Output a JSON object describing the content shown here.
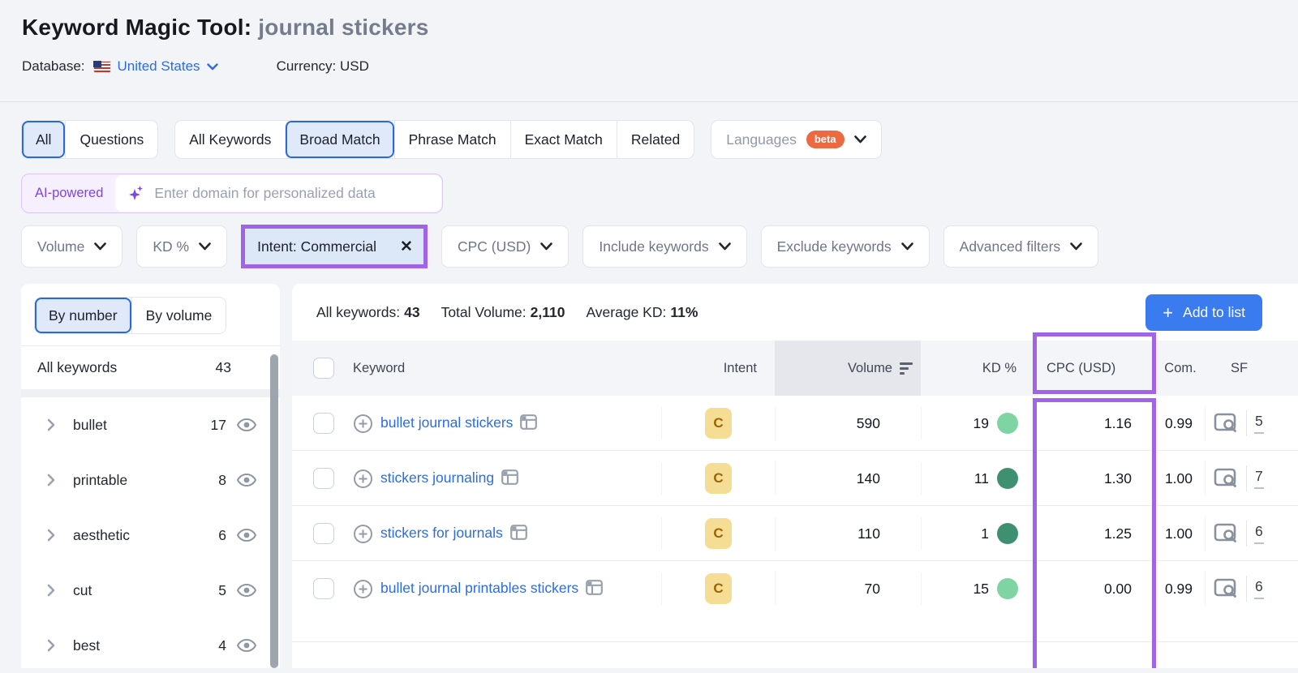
{
  "app": {
    "title": "Keyword Magic Tool:",
    "query": "journal stickers"
  },
  "meta": {
    "database_label": "Database:",
    "database_value": "United States",
    "currency_label": "Currency:",
    "currency_value": "USD"
  },
  "match_tabs": {
    "scope": [
      {
        "label": "All",
        "selected": true
      },
      {
        "label": "Questions",
        "selected": false
      }
    ],
    "match": [
      {
        "label": "All Keywords",
        "selected": false
      },
      {
        "label": "Broad Match",
        "selected": true
      },
      {
        "label": "Phrase Match",
        "selected": false
      },
      {
        "label": "Exact Match",
        "selected": false
      },
      {
        "label": "Related",
        "selected": false
      }
    ],
    "languages": {
      "label": "Languages",
      "badge": "beta"
    }
  },
  "ai_bar": {
    "badge": "AI-powered",
    "placeholder": "Enter domain for personalized data"
  },
  "filters": {
    "volume": "Volume",
    "kd": "KD %",
    "intent_chip": "Intent: Commercial",
    "cpc": "CPC (USD)",
    "include": "Include keywords",
    "exclude": "Exclude keywords",
    "advanced": "Advanced filters"
  },
  "sidebar": {
    "toggles": [
      {
        "label": "By number",
        "selected": true
      },
      {
        "label": "By volume",
        "selected": false
      }
    ],
    "all_row": {
      "label": "All keywords",
      "count": "43"
    },
    "groups": [
      {
        "label": "bullet",
        "count": "17"
      },
      {
        "label": "printable",
        "count": "8"
      },
      {
        "label": "aesthetic",
        "count": "6"
      },
      {
        "label": "cut",
        "count": "5"
      },
      {
        "label": "best",
        "count": "4"
      }
    ]
  },
  "summary": {
    "stats": [
      {
        "label": "All keywords:",
        "value": "43"
      },
      {
        "label": "Total Volume:",
        "value": "2,110"
      },
      {
        "label": "Average KD:",
        "value": "11%"
      }
    ],
    "add_to_list": "Add to list"
  },
  "table": {
    "columns": {
      "keyword": "Keyword",
      "intent": "Intent",
      "volume": "Volume",
      "kd": "KD %",
      "cpc": "CPC (USD)",
      "com": "Com.",
      "sf": "SF"
    },
    "rows": [
      {
        "keyword": "bullet journal stickers",
        "intent": "C",
        "volume": "590",
        "kd": "19",
        "kd_level": "light",
        "cpc": "1.16",
        "com": "0.99",
        "sf": "5"
      },
      {
        "keyword": "stickers journaling",
        "intent": "C",
        "volume": "140",
        "kd": "11",
        "kd_level": "dark",
        "cpc": "1.30",
        "com": "1.00",
        "sf": "7"
      },
      {
        "keyword": "stickers for journals",
        "intent": "C",
        "volume": "110",
        "kd": "1",
        "kd_level": "dark",
        "cpc": "1.25",
        "com": "1.00",
        "sf": "6"
      },
      {
        "keyword": "bullet journal printables stickers",
        "intent": "C",
        "volume": "70",
        "kd": "15",
        "kd_level": "light",
        "cpc": "0.00",
        "com": "0.99",
        "sf": "6"
      }
    ]
  },
  "colors": {
    "accent_blue": "#2e6be2",
    "button_blue": "#3a7cf0",
    "annotation_purple": "#a164e8",
    "ai_purple": "#7b46e8",
    "beta_orange": "#eb6a41",
    "intent_commercial_bg": "#f6dd96",
    "intent_commercial_text": "#9a6403",
    "kd_light_green": "#7fd4a3",
    "kd_dark_green": "#3f9070",
    "selected_tab_bg": "#dfe9fa",
    "selected_tab_border": "#2b6ad6"
  }
}
